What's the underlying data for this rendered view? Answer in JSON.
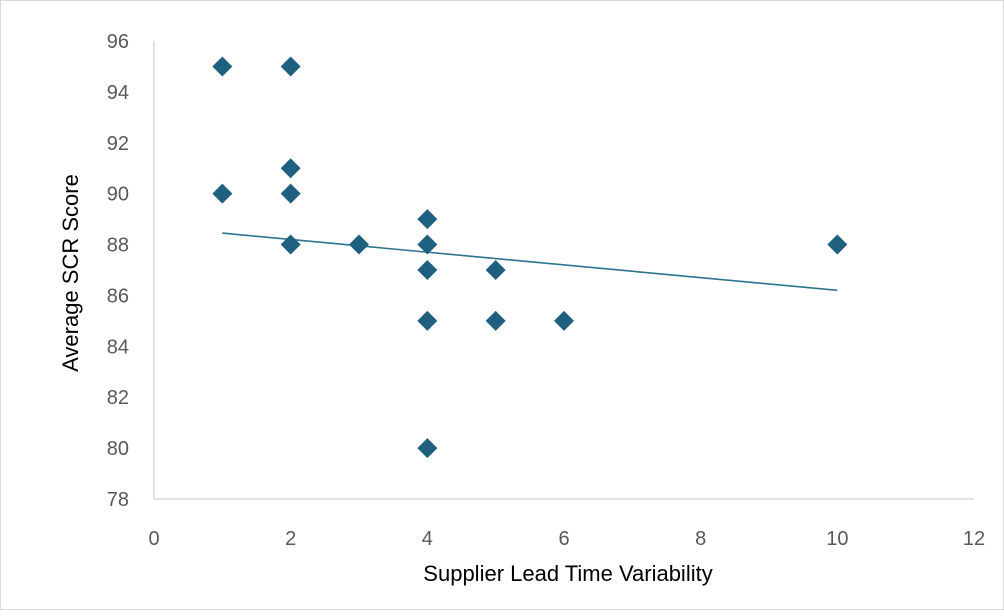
{
  "chart_data": {
    "type": "scatter",
    "title": "",
    "xlabel": "Supplier Lead Time Variability",
    "ylabel": "Average SCR Score",
    "xlim": [
      0,
      12
    ],
    "ylim": [
      78,
      96
    ],
    "xticks": [
      "0",
      "2",
      "4",
      "6",
      "8",
      "10",
      "12"
    ],
    "yticks": [
      "78",
      "80",
      "82",
      "84",
      "86",
      "88",
      "90",
      "92",
      "94",
      "96"
    ],
    "grid": false,
    "legend": "none",
    "marker": "diamond",
    "marker_color": "#1f5f80",
    "trendline_color": "#2e7491",
    "points": [
      {
        "x": 1,
        "y": 95
      },
      {
        "x": 2,
        "y": 95
      },
      {
        "x": 2,
        "y": 91
      },
      {
        "x": 1,
        "y": 90
      },
      {
        "x": 2,
        "y": 90
      },
      {
        "x": 4,
        "y": 89
      },
      {
        "x": 2,
        "y": 88
      },
      {
        "x": 3,
        "y": 88
      },
      {
        "x": 4,
        "y": 88
      },
      {
        "x": 10,
        "y": 88
      },
      {
        "x": 4,
        "y": 87
      },
      {
        "x": 5,
        "y": 87
      },
      {
        "x": 4,
        "y": 85
      },
      {
        "x": 5,
        "y": 85
      },
      {
        "x": 6,
        "y": 85
      },
      {
        "x": 4,
        "y": 80
      }
    ],
    "trendline": {
      "type": "linear",
      "x_start": 1,
      "y_start": 88.45,
      "x_end": 10,
      "y_end": 86.2
    }
  }
}
